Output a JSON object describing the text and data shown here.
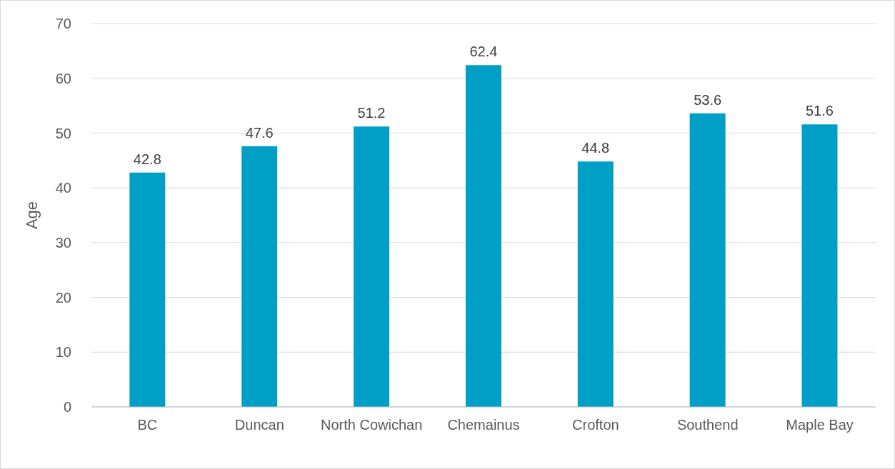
{
  "chart_data": {
    "type": "bar",
    "ylabel": "Age",
    "categories": [
      "BC",
      "Duncan",
      "North Cowichan",
      "Chemainus",
      "Crofton",
      "Southend",
      "Maple Bay"
    ],
    "values": [
      42.8,
      47.6,
      51.2,
      62.4,
      44.8,
      53.6,
      51.6
    ],
    "color": "#009fc5",
    "ylim": [
      0,
      70
    ],
    "yticks": [
      0,
      10,
      20,
      30,
      40,
      50,
      60,
      70
    ],
    "grid": "y",
    "data_labels": true
  }
}
